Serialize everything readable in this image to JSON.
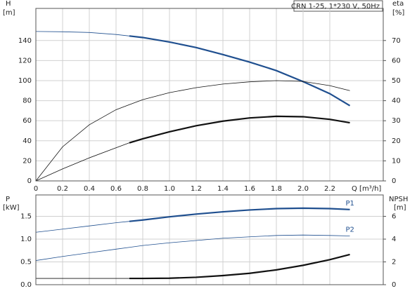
{
  "chart_data": [
    {
      "type": "line",
      "title": "CRN 1-25, 1*230 V, 50Hz",
      "y_label": "H",
      "y_unit": "[m]",
      "y2_label": "eta",
      "y2_unit": "[%]",
      "x_label": "Q [m³/h]",
      "x": [
        0,
        0.2,
        0.4,
        0.6,
        0.7,
        0.8,
        1.0,
        1.2,
        1.4,
        1.6,
        1.8,
        2.0,
        2.2,
        2.35
      ],
      "xlim": [
        0,
        2.6
      ],
      "xticks": [
        0,
        0.2,
        0.4,
        0.6,
        0.8,
        {
          "value": 1,
          "label": "1.0"
        },
        1.2,
        1.4,
        1.6,
        1.8,
        {
          "value": 2,
          "label": "2.0"
        },
        2.2
      ],
      "ylim": [
        0,
        172
      ],
      "yticks": [
        0,
        20,
        40,
        60,
        80,
        100,
        120,
        140
      ],
      "y2lim": [
        0,
        86
      ],
      "y2ticks": [
        0,
        10,
        20,
        30,
        40,
        50,
        60,
        70
      ],
      "grid": true,
      "series": [
        {
          "color": "#1f4f8f",
          "thick_from": 0.7,
          "values": [
            149,
            148.7,
            148,
            146,
            144.5,
            143,
            138.5,
            133,
            126,
            118.5,
            110,
            99,
            87,
            75
          ]
        },
        {
          "color": "#111111",
          "axis": "y2",
          "values": [
            0,
            17,
            28,
            35.5,
            38,
            40.5,
            44,
            46.5,
            48.3,
            49.4,
            50,
            49.6,
            47.5,
            45
          ]
        },
        {
          "color": "#111111",
          "axis": "y2",
          "thick_from": 0.7,
          "values": [
            0,
            6,
            11.5,
            16.5,
            19,
            21,
            24.5,
            27.5,
            29.8,
            31.4,
            32.2,
            32,
            30.7,
            29
          ]
        }
      ]
    },
    {
      "type": "line",
      "y_label": "P",
      "y_unit": "[kW]",
      "y2_label": "NPSH",
      "y2_unit": "[m]",
      "x": [
        0,
        0.2,
        0.4,
        0.6,
        0.7,
        0.8,
        1.0,
        1.2,
        1.4,
        1.6,
        1.8,
        2.0,
        2.2,
        2.35
      ],
      "xlim": [
        0,
        2.6
      ],
      "ylim": [
        0,
        1.97
      ],
      "yticks": [
        {
          "value": 0,
          "label": "0.0"
        },
        0.5,
        {
          "value": 1,
          "label": "1.0"
        },
        1.5
      ],
      "y2lim": [
        0,
        7.88
      ],
      "y2ticks": [
        0,
        2,
        4,
        6
      ],
      "grid": true,
      "series": [
        {
          "name": "P1",
          "color": "#1f4f8f",
          "thick_from": 0.7,
          "values": [
            1.15,
            1.22,
            1.29,
            1.36,
            1.39,
            1.42,
            1.49,
            1.55,
            1.6,
            1.64,
            1.67,
            1.68,
            1.67,
            1.65
          ]
        },
        {
          "name": "P2",
          "color": "#1f4f8f",
          "values": [
            0.53,
            0.62,
            0.7,
            0.78,
            0.82,
            0.86,
            0.92,
            0.97,
            1.02,
            1.05,
            1.08,
            1.09,
            1.08,
            1.07
          ]
        },
        {
          "color": "#111111",
          "axis": "y2",
          "thick_from": 0.7,
          "values": [
            0.55,
            0.55,
            0.55,
            0.55,
            0.55,
            0.55,
            0.57,
            0.65,
            0.8,
            1.0,
            1.3,
            1.7,
            2.2,
            2.65
          ]
        }
      ]
    }
  ]
}
